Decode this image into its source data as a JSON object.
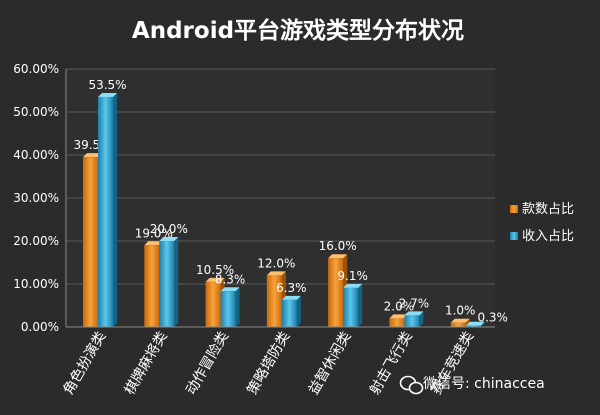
{
  "watermark": "微信号: chinaccea",
  "chart_data": {
    "type": "bar",
    "title": "Android平台游戏类型分布状况",
    "xlabel": "",
    "ylabel": "",
    "ylim": [
      0,
      60
    ],
    "yticks": [
      "0.00%",
      "10.00%",
      "20.00%",
      "30.00%",
      "40.00%",
      "50.00%",
      "60.00%"
    ],
    "grid": true,
    "legend_position": "right",
    "categories": [
      "角色扮演类",
      "棋牌麻将类",
      "动作冒险类",
      "策略塔防类",
      "益智休闲类",
      "射击飞行类",
      "赛车竞速类"
    ],
    "series": [
      {
        "name": "款数占比",
        "color": "#f28c1e",
        "values": [
          39.5,
          19.0,
          10.5,
          12.0,
          16.0,
          2.0,
          1.0
        ],
        "labels": [
          "39.5%",
          "19.0%",
          "10.5%",
          "12.0%",
          "16.0%",
          "2.0%",
          "1.0%"
        ]
      },
      {
        "name": "收入占比",
        "color": "#2fa8d6",
        "values": [
          53.5,
          20.0,
          8.3,
          6.3,
          9.1,
          2.7,
          0.3
        ],
        "labels": [
          "53.5%",
          "20.0%",
          "8.3%",
          "6.3%",
          "9.1%",
          "2.7%",
          "0.3%"
        ]
      }
    ]
  }
}
